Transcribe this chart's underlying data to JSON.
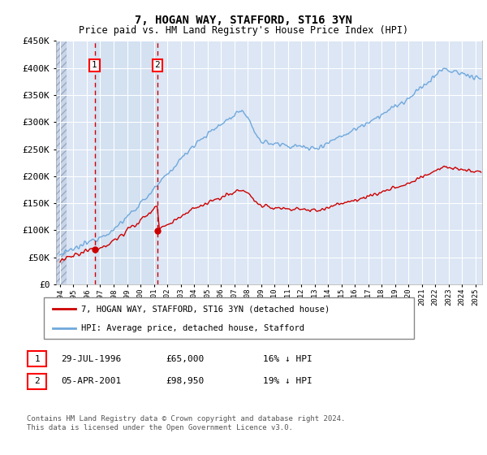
{
  "title": "7, HOGAN WAY, STAFFORD, ST16 3YN",
  "subtitle": "Price paid vs. HM Land Registry's House Price Index (HPI)",
  "ylim": [
    0,
    450000
  ],
  "yticks": [
    0,
    50000,
    100000,
    150000,
    200000,
    250000,
    300000,
    350000,
    400000,
    450000
  ],
  "ytick_labels": [
    "£0",
    "£50K",
    "£100K",
    "£150K",
    "£200K",
    "£250K",
    "£300K",
    "£350K",
    "£400K",
    "£450K"
  ],
  "hpi_color": "#6fa8dc",
  "price_color": "#cc0000",
  "sale1_date": 1996.58,
  "sale1_price": 65000,
  "sale1_label": "1",
  "sale2_date": 2001.27,
  "sale2_price": 98950,
  "sale2_label": "2",
  "legend_entry1": "7, HOGAN WAY, STAFFORD, ST16 3YN (detached house)",
  "legend_entry2": "HPI: Average price, detached house, Stafford",
  "table_row1": [
    "1",
    "29-JUL-1996",
    "£65,000",
    "16% ↓ HPI"
  ],
  "table_row2": [
    "2",
    "05-APR-2001",
    "£98,950",
    "19% ↓ HPI"
  ],
  "footer": "Contains HM Land Registry data © Crown copyright and database right 2024.\nThis data is licensed under the Open Government Licence v3.0.",
  "plot_bg": "#dce6f5",
  "grid_color": "#ffffff",
  "xlim_start": 1993.7,
  "xlim_end": 2025.5,
  "hatch_end": 1994.5,
  "shade_start": 1996.58,
  "shade_end": 2001.27
}
